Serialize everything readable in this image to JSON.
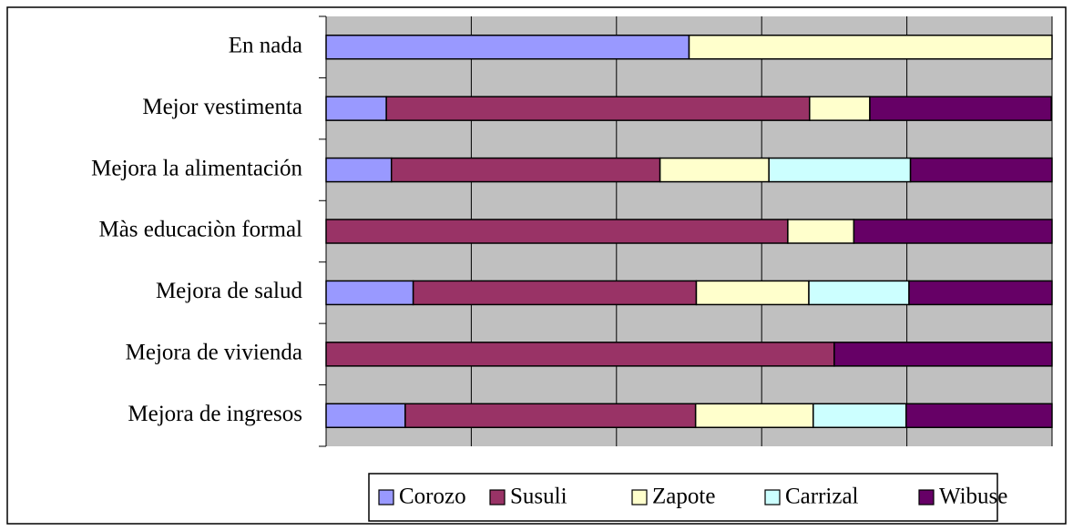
{
  "chart_data": {
    "type": "stacked-bar-horizontal",
    "categories": [
      "En nada",
      "Mejor vestimenta",
      "Mejora la alimentación",
      "Màs educaciòn formal",
      "Mejora de salud",
      "Mejora de vivienda",
      "Mejora de ingresos"
    ],
    "series": [
      {
        "name": "Corozo",
        "color": "#9999ff",
        "values": [
          50,
          8.3,
          9,
          null,
          12,
          null,
          10.9
        ]
      },
      {
        "name": "Susuli",
        "color": "#993366",
        "values": [
          null,
          58.3,
          37,
          63.6,
          39,
          70,
          40
        ]
      },
      {
        "name": "Zapote",
        "color": "#ffffcc",
        "values": [
          50,
          8.3,
          15,
          9.1,
          15.5,
          null,
          16.2
        ]
      },
      {
        "name": "Carrizal",
        "color": "#ccffff",
        "values": [
          null,
          null,
          19.5,
          null,
          13.8,
          null,
          12.8
        ]
      },
      {
        "name": "Wibuse",
        "color": "#660066",
        "values": [
          null,
          25,
          19.5,
          27.3,
          19.7,
          30,
          20.1
        ]
      }
    ],
    "xlim": [
      0,
      100
    ],
    "xticks": [
      0,
      20,
      40,
      60,
      80,
      100
    ],
    "grid": true,
    "legend": "bottom"
  }
}
